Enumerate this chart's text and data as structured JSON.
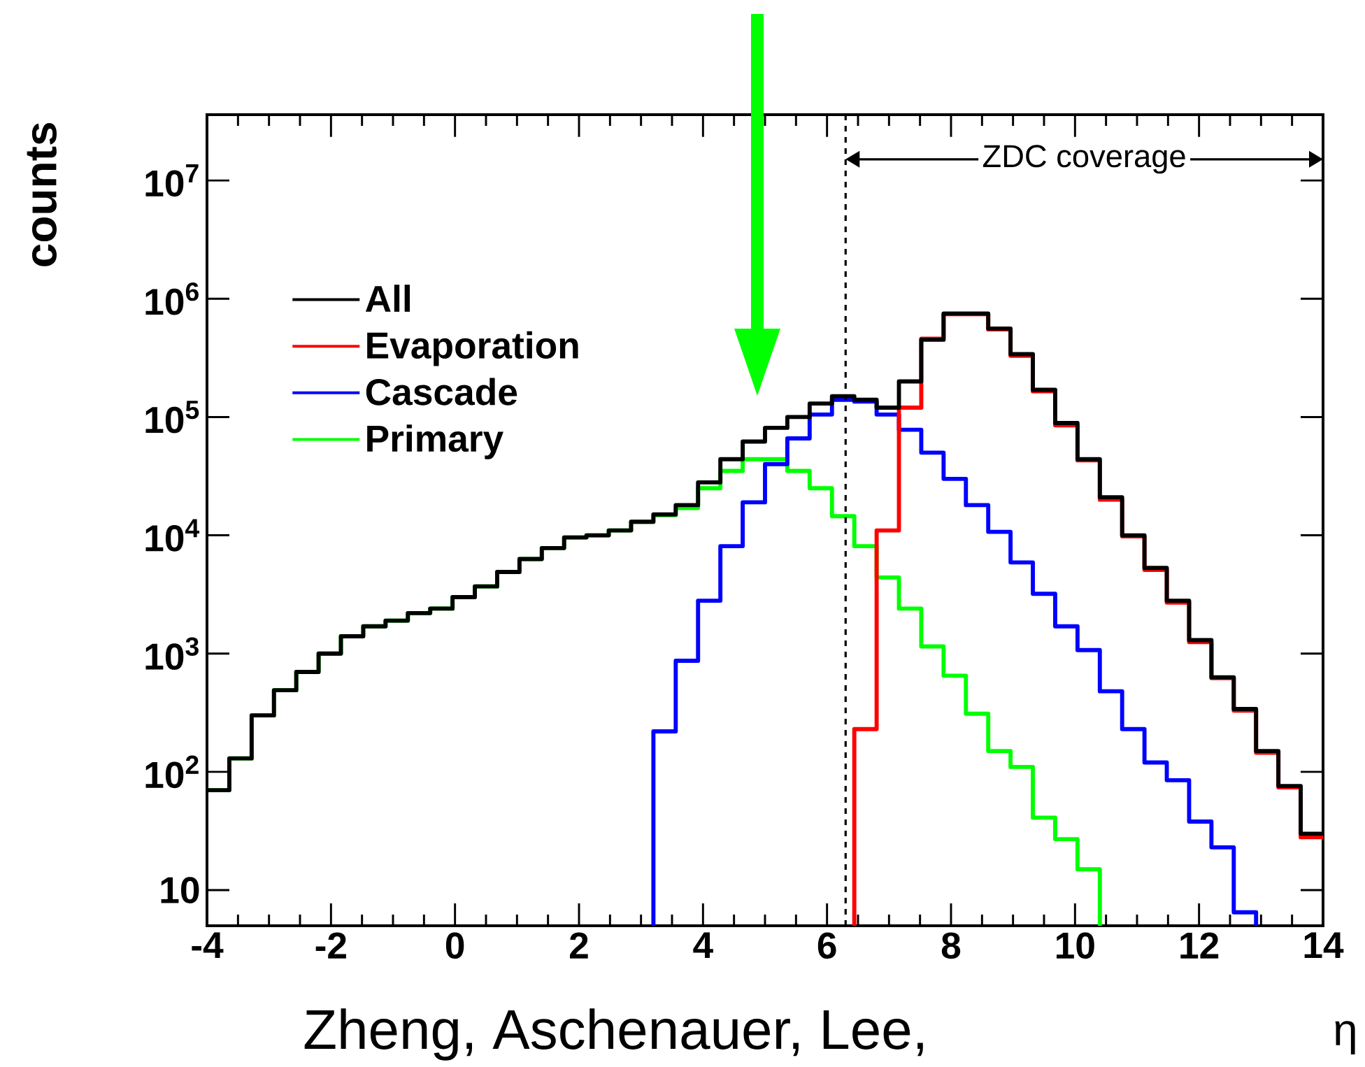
{
  "chart_data": {
    "type": "histogram",
    "xlabel": "η",
    "ylabel": "counts",
    "log": "y",
    "legend": "left",
    "bins": [
      -4,
      -3.64,
      -3.28,
      -2.92,
      -2.56,
      -2.2,
      -1.84,
      -1.48,
      -1.12,
      -0.76,
      -0.4,
      -0.04,
      0.32,
      0.68,
      1.04,
      1.4,
      1.76,
      2.12,
      2.48,
      2.84,
      3.2,
      3.56,
      3.92,
      4.28,
      4.64,
      5,
      5.36,
      5.72,
      6.08,
      6.44,
      6.8,
      7.16,
      7.52,
      7.88,
      8.24,
      8.6,
      8.96,
      9.32,
      9.68,
      10.04,
      10.4,
      10.76,
      11.12,
      11.48,
      11.84,
      12.2,
      12.56,
      12.92,
      13.28,
      13.64,
      14
    ],
    "series": [
      {
        "name": "All",
        "color": "#000000",
        "values": [
          70,
          130,
          300,
          490,
          700,
          1000,
          1400,
          1700,
          1900,
          2200,
          2400,
          3000,
          3700,
          4900,
          6300,
          7800,
          9600,
          10000,
          11000,
          13000,
          15000,
          18000,
          28000,
          44000,
          62000,
          81000,
          100000,
          130000,
          150000,
          140000,
          120000,
          200000,
          450000,
          750000,
          750000,
          560000,
          340000,
          170000,
          89000,
          44000,
          21000,
          10000,
          5300,
          2800,
          1300,
          630,
          340,
          150,
          76,
          30
        ]
      },
      {
        "name": "Evaporation",
        "color": "#ff0000",
        "bins": [
          6.44,
          6.8,
          7.16,
          7.52,
          7.88,
          8.24,
          8.6,
          8.96,
          9.32,
          9.68,
          10.04,
          10.4,
          10.76,
          11.12,
          11.48,
          11.84,
          12.2,
          12.56,
          12.92,
          13.28,
          13.64,
          14
        ],
        "values": [
          230,
          11000,
          120000,
          460000,
          740000,
          740000,
          550000,
          330000,
          165000,
          85000,
          43000,
          20000,
          9800,
          5100,
          2700,
          1250,
          620,
          330,
          145,
          74,
          28
        ]
      },
      {
        "name": "Cascade",
        "color": "#0000ff",
        "bins": [
          3.2,
          3.56,
          3.92,
          4.28,
          4.64,
          5,
          5.36,
          5.72,
          6.08,
          6.44,
          6.8,
          7.16,
          7.52,
          7.88,
          8.24,
          8.6,
          8.96,
          9.32,
          9.68,
          10.04,
          10.4,
          10.76,
          11.12,
          11.48,
          11.84,
          12.2,
          12.56,
          12.92
        ],
        "values": [
          220,
          870,
          2800,
          8100,
          19000,
          40000,
          66000,
          105000,
          140000,
          135000,
          105000,
          78000,
          50000,
          30000,
          18000,
          10700,
          5900,
          3200,
          1700,
          1070,
          480,
          230,
          120,
          85,
          38,
          23,
          6.5
        ]
      },
      {
        "name": "Primary",
        "color": "#00ff00",
        "bins": [
          -4,
          -3.64,
          -3.28,
          -2.92,
          -2.56,
          -2.2,
          -1.84,
          -1.48,
          -1.12,
          -0.76,
          -0.4,
          -0.04,
          0.32,
          0.68,
          1.04,
          1.4,
          1.76,
          2.12,
          2.48,
          2.84,
          3.2,
          3.56,
          3.92,
          4.28,
          4.64,
          5,
          5.36,
          5.72,
          6.08,
          6.44,
          6.8,
          7.16,
          7.52,
          7.88,
          8.24,
          8.6,
          8.96,
          9.32,
          9.68,
          10.04,
          10.4
        ],
        "values": [
          70,
          130,
          300,
          490,
          700,
          1000,
          1400,
          1700,
          1900,
          2200,
          2400,
          3000,
          3700,
          4900,
          6300,
          7800,
          9600,
          10000,
          11000,
          13000,
          14800,
          17000,
          25000,
          35000,
          44000,
          44000,
          35000,
          25000,
          14500,
          8100,
          4400,
          2400,
          1150,
          650,
          310,
          150,
          110,
          41,
          27,
          15
        ]
      }
    ],
    "xlim": [
      -4,
      14
    ],
    "xticks": [
      -4,
      -2,
      0,
      2,
      4,
      6,
      8,
      10,
      12,
      14
    ],
    "ylim": [
      5,
      36000000
    ],
    "yticks": [
      10,
      {
        "value": 100,
        "label": "10$^{2}$"
      },
      {
        "value": 1000,
        "label": "10$^{3}$"
      },
      {
        "value": 10000,
        "label": "10$^{4}$"
      },
      {
        "value": 100000,
        "label": "10$^{5}$"
      },
      {
        "value": 1000000,
        "label": "10$^{6}$"
      },
      {
        "value": 10000000,
        "label": "10$^{7}$"
      }
    ],
    "ref_lines": [
      {
        "axis": "x",
        "value": 6.3,
        "line_style": "dashed"
      }
    ],
    "annotations": [
      "Zheng, Aschenauer, Lee,",
      "ZDC coverage"
    ]
  }
}
